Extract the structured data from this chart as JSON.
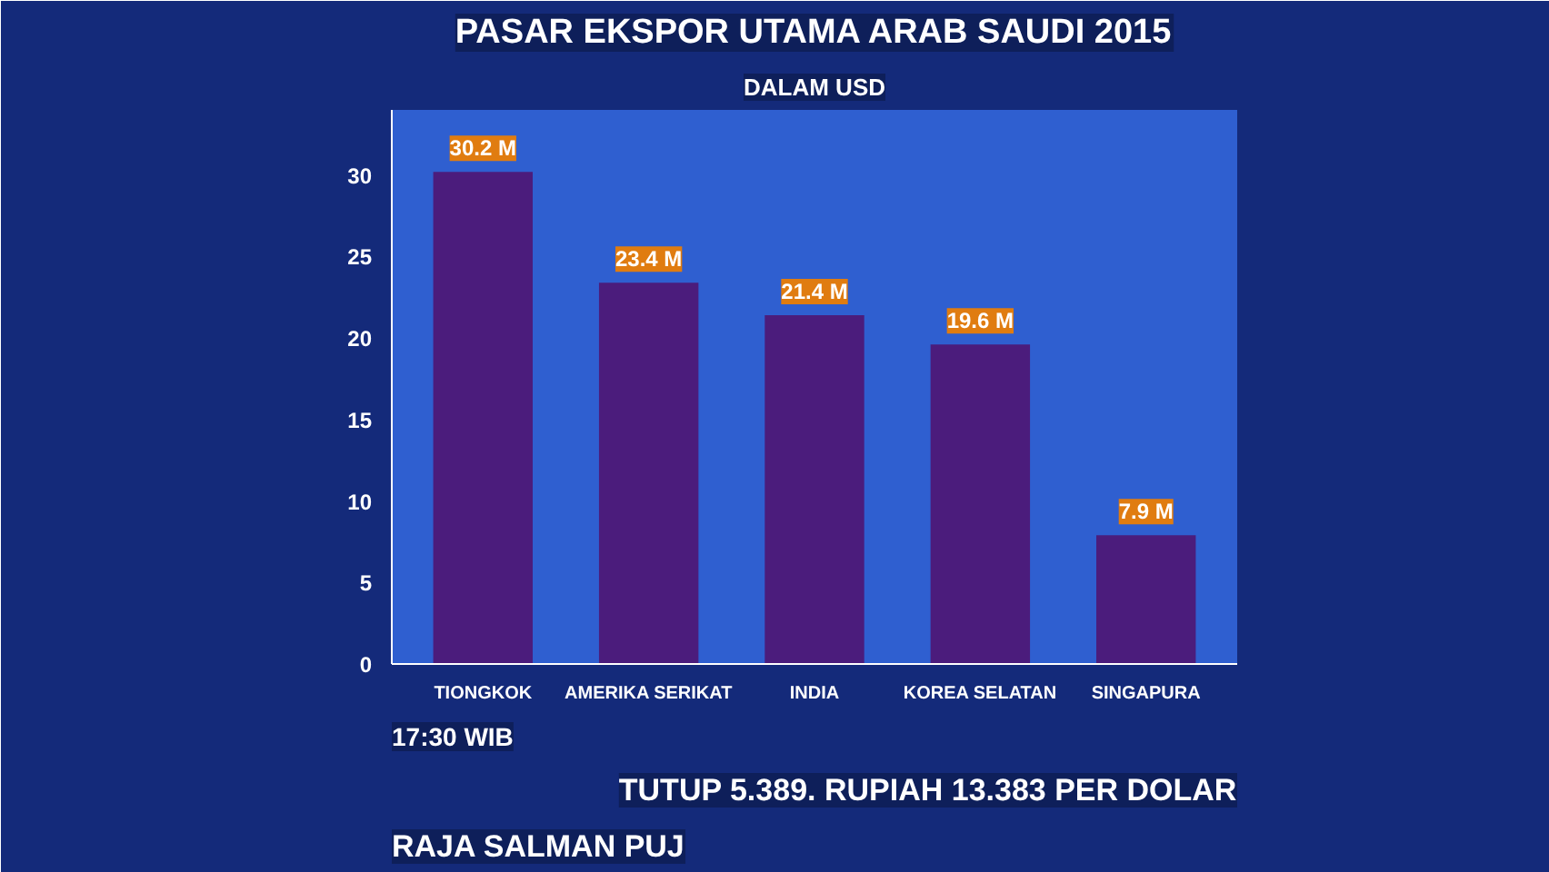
{
  "chart_data": {
    "type": "bar",
    "title": "PASAR EKSPOR UTAMA ARAB SAUDI 2015",
    "subtitle": "DALAM USD",
    "categories": [
      "TIONGKOK",
      "AMERIKA SERIKAT",
      "INDIA",
      "KOREA SELATAN",
      "SINGAPURA"
    ],
    "values": [
      30.2,
      23.4,
      21.4,
      19.6,
      7.9
    ],
    "value_labels": [
      "30.2 M",
      "23.4 M",
      "21.4 M",
      "19.6 M",
      "7.9 M"
    ],
    "color": "#4b1c7c",
    "ylim": [
      0,
      34
    ],
    "yticks": [
      0,
      5,
      10,
      15,
      20,
      25,
      30
    ],
    "grid": false,
    "annotations": [
      "17:30 WIB",
      "TUTUP 5.389. RUPIAH 13.383 PER DOLAR",
      "RAJA SALMAN PUJ"
    ]
  }
}
